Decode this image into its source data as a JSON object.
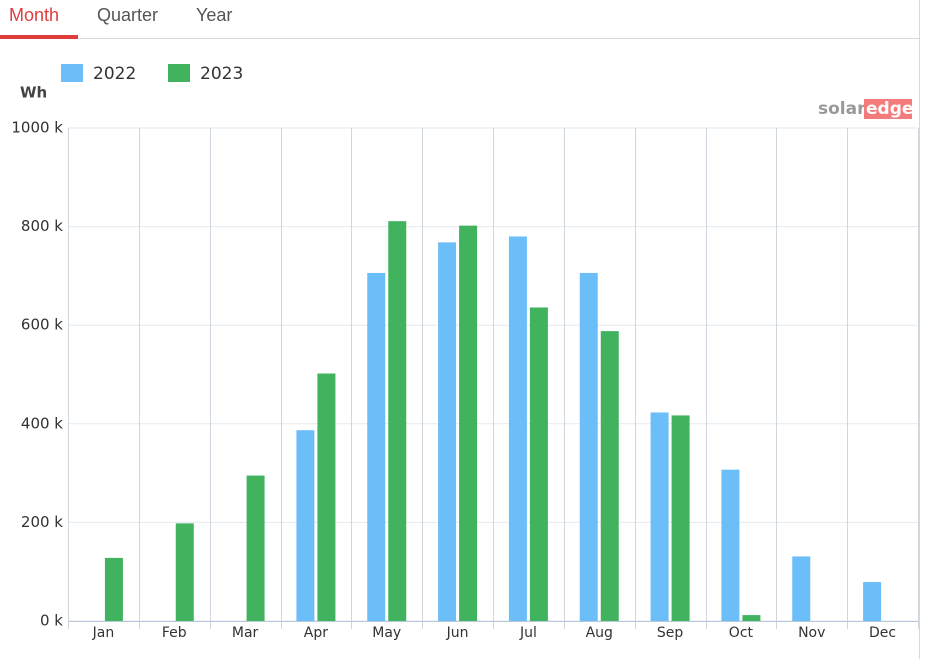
{
  "tabs": [
    "Month",
    "Quarter",
    "Year"
  ],
  "logo": [
    "solar",
    "edge"
  ],
  "chart_data": {
    "type": "bar",
    "y_label": "Wh",
    "categories": [
      "Jan",
      "Feb",
      "Mar",
      "Apr",
      "May",
      "Jun",
      "Jul",
      "Aug",
      "Sep",
      "Oct",
      "Nov",
      "Dec"
    ],
    "series": [
      {
        "name": "2022",
        "color": "#6cbef8",
        "values": [
          null,
          null,
          null,
          387000,
          706000,
          768000,
          780000,
          706000,
          423000,
          307000,
          131000,
          79000
        ]
      },
      {
        "name": "2023",
        "color": "#41b35f",
        "values": [
          128000,
          198000,
          295000,
          502000,
          811000,
          802000,
          636000,
          588000,
          417000,
          12000,
          null,
          null
        ]
      }
    ],
    "ylim": [
      0,
      1000000
    ],
    "yticks": [
      {
        "value": 0,
        "label": "0 k"
      },
      {
        "value": 200000,
        "label": "200 k"
      },
      {
        "value": 400000,
        "label": "400 k"
      },
      {
        "value": 600000,
        "label": "600 k"
      },
      {
        "value": 800000,
        "label": "800 k"
      },
      {
        "value": 1000000,
        "label": "1000 k"
      }
    ],
    "grid": true,
    "legend": "top-left"
  }
}
